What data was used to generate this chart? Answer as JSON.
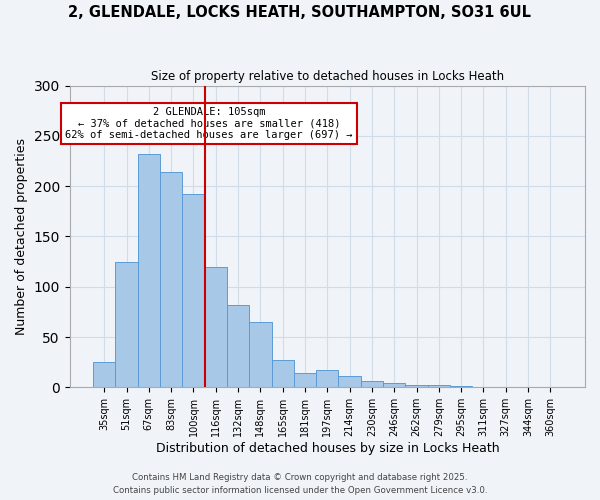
{
  "title": "2, GLENDALE, LOCKS HEATH, SOUTHAMPTON, SO31 6UL",
  "subtitle": "Size of property relative to detached houses in Locks Heath",
  "xlabel": "Distribution of detached houses by size in Locks Heath",
  "ylabel": "Number of detached properties",
  "categories": [
    "35sqm",
    "51sqm",
    "67sqm",
    "83sqm",
    "100sqm",
    "116sqm",
    "132sqm",
    "148sqm",
    "165sqm",
    "181sqm",
    "197sqm",
    "214sqm",
    "230sqm",
    "246sqm",
    "262sqm",
    "279sqm",
    "295sqm",
    "311sqm",
    "327sqm",
    "344sqm",
    "360sqm"
  ],
  "values": [
    25,
    125,
    232,
    214,
    192,
    120,
    82,
    65,
    27,
    14,
    17,
    11,
    6,
    4,
    2,
    2,
    1,
    0,
    0,
    0,
    0
  ],
  "bar_color": "#a8c8e8",
  "bar_edge_color": "#5b9bd5",
  "vline_x": 4,
  "vline_color": "#cc0000",
  "annotation_line1": "2 GLENDALE: 105sqm",
  "annotation_line2": "← 37% of detached houses are smaller (418)",
  "annotation_line3": "62% of semi-detached houses are larger (697) →",
  "annotation_box_color": "#ffffff",
  "annotation_box_edge": "#cc0000",
  "grid_color": "#d0dce8",
  "background_color": "#f0f4f8",
  "ylim": [
    0,
    300
  ],
  "yticks": [
    0,
    50,
    100,
    150,
    200,
    250,
    300
  ],
  "footer1": "Contains HM Land Registry data © Crown copyright and database right 2025.",
  "footer2": "Contains public sector information licensed under the Open Government Licence v3.0."
}
